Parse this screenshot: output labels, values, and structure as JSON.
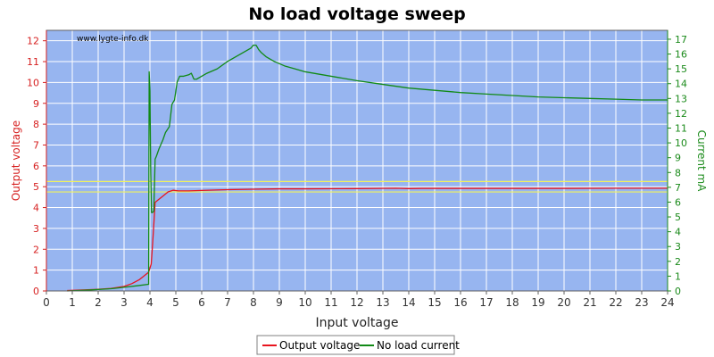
{
  "chart_data": {
    "type": "line",
    "title": "No load voltage sweep",
    "watermark": "www.lygte-info.dk",
    "xlabel": "Input voltage",
    "ylabel_left": "Output voltage",
    "ylabel_right": "Current mA",
    "xlim": [
      0,
      24
    ],
    "ylim_left": [
      0,
      12.5
    ],
    "ylim_right": [
      0,
      17.6
    ],
    "xticks": [
      0,
      1,
      2,
      3,
      4,
      5,
      6,
      7,
      8,
      9,
      10,
      11,
      12,
      13,
      14,
      15,
      16,
      17,
      18,
      19,
      20,
      21,
      22,
      23,
      24
    ],
    "yticks_left": [
      0,
      1,
      2,
      3,
      4,
      5,
      6,
      7,
      8,
      9,
      10,
      11,
      12
    ],
    "yticks_right": [
      0,
      1,
      2,
      3,
      4,
      5,
      6,
      7,
      8,
      9,
      10,
      11,
      12,
      13,
      14,
      15,
      16,
      17
    ],
    "grid": true,
    "legend_position": "bottom-center",
    "reference_lines_left": [
      5.25,
      4.75
    ],
    "colors": {
      "plot_bg": "#97b5f0",
      "grid": "#ffffff",
      "voltage": "#e8141e",
      "current": "#118a16",
      "reference": "#f2f25a",
      "left_axis": "#d61f1f",
      "right_axis": "#1a8a1a"
    },
    "series": [
      {
        "name": "Output voltage",
        "axis": "left",
        "x": [
          0.8,
          1.5,
          2.0,
          2.5,
          3.0,
          3.3,
          3.6,
          3.8,
          3.95,
          4.05,
          4.1,
          4.15,
          4.2,
          4.3,
          4.5,
          4.7,
          4.9,
          5.1,
          5.5,
          6.0,
          7.0,
          8.0,
          9.0,
          10.0,
          12.0,
          13.5,
          14.0,
          14.5,
          16.0,
          18.0,
          20.0,
          22.0,
          24.0
        ],
        "y": [
          0.02,
          0.05,
          0.08,
          0.12,
          0.22,
          0.35,
          0.55,
          0.75,
          0.9,
          1.3,
          2.2,
          3.2,
          4.25,
          4.35,
          4.55,
          4.75,
          4.83,
          4.8,
          4.8,
          4.82,
          4.86,
          4.88,
          4.9,
          4.9,
          4.91,
          4.93,
          4.91,
          4.92,
          4.92,
          4.92,
          4.92,
          4.93,
          4.93
        ]
      },
      {
        "name": "No load current",
        "axis": "right",
        "x": [
          0.8,
          1.5,
          2.0,
          2.5,
          3.0,
          3.5,
          3.95,
          3.97,
          4.0,
          4.03,
          4.06,
          4.1,
          4.15,
          4.2,
          4.25,
          4.35,
          4.5,
          4.6,
          4.75,
          4.85,
          4.95,
          5.05,
          5.15,
          5.3,
          5.5,
          5.6,
          5.7,
          5.8,
          5.9,
          6.2,
          6.6,
          7.0,
          7.5,
          7.9,
          8.0,
          8.1,
          8.2,
          8.3,
          8.5,
          8.8,
          9.2,
          9.6,
          10.0,
          11.0,
          12.0,
          13.0,
          14.0,
          15.0,
          16.0,
          17.0,
          18.0,
          19.0,
          20.0,
          21.0,
          22.0,
          23.0,
          24.0
        ],
        "y": [
          0.0,
          0.05,
          0.1,
          0.15,
          0.25,
          0.35,
          0.45,
          14.8,
          13.5,
          8.0,
          5.3,
          5.3,
          5.4,
          8.9,
          9.1,
          9.6,
          10.2,
          10.7,
          11.1,
          12.6,
          12.9,
          14.1,
          14.5,
          14.5,
          14.6,
          14.7,
          14.3,
          14.3,
          14.4,
          14.7,
          15.0,
          15.5,
          16.0,
          16.4,
          16.6,
          16.6,
          16.3,
          16.1,
          15.8,
          15.5,
          15.2,
          15.0,
          14.8,
          14.5,
          14.2,
          13.95,
          13.7,
          13.55,
          13.4,
          13.3,
          13.2,
          13.1,
          13.05,
          13.0,
          12.95,
          12.9,
          12.9
        ]
      }
    ]
  }
}
